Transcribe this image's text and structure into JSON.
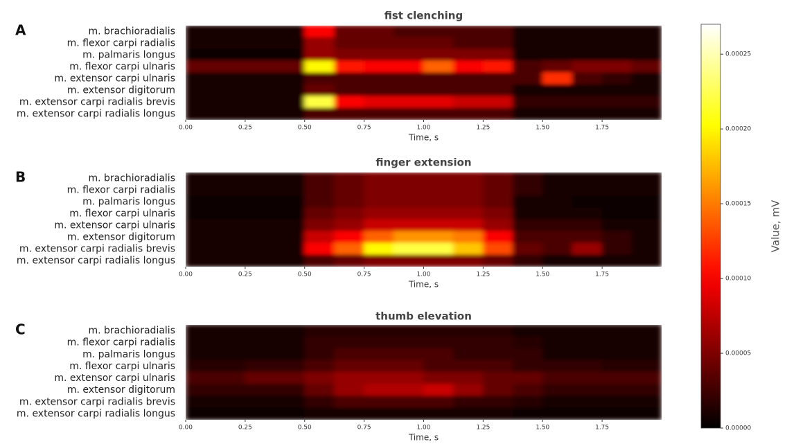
{
  "chart_data": [
    {
      "type": "heatmap",
      "panel_label": "A",
      "title": "fist clenching",
      "xlabel": "Time, s",
      "categories": [
        "m. brachioradialis",
        "m. flexor carpi radialis",
        "m. palmaris longus",
        "m. flexor carpi ulnaris",
        "m. extensor carpi ulnaris",
        "m. extensor digitorum",
        "m. extensor carpi radialis brevis",
        "m. extensor carpi radialis longus"
      ],
      "x_bins": [
        0,
        0.125,
        0.25,
        0.375,
        0.5,
        0.625,
        0.75,
        0.875,
        1,
        1.125,
        1.25,
        1.375,
        1.5,
        1.625,
        1.75,
        1.875,
        2
      ],
      "xlim": [
        0,
        2
      ],
      "xticks": [
        {
          "value": 0,
          "label": "0.00"
        },
        0.25,
        {
          "value": 0.5,
          "label": "0.50"
        },
        0.75,
        {
          "value": 1,
          "label": "1.00"
        },
        1.25,
        {
          "value": 1.5,
          "label": "1.50"
        },
        1.75
      ],
      "values": [
        [
          1e-05,
          1e-05,
          1e-05,
          1e-05,
          0.0001,
          4e-05,
          4e-05,
          3e-05,
          3e-05,
          3e-05,
          3e-05,
          1e-05,
          1e-05,
          1e-05,
          1e-05,
          1e-05
        ],
        [
          1e-05,
          1e-05,
          1e-05,
          1e-05,
          6e-05,
          4e-05,
          4e-05,
          4e-05,
          4e-05,
          3e-05,
          3e-05,
          1e-05,
          1e-05,
          1e-05,
          1e-05,
          1e-05
        ],
        [
          5e-06,
          5e-06,
          5e-06,
          5e-06,
          6e-05,
          5e-05,
          5e-05,
          5e-05,
          5e-05,
          5e-05,
          5e-05,
          1e-05,
          1e-05,
          1e-05,
          1e-05,
          1e-05
        ],
        [
          4e-05,
          4e-05,
          4e-05,
          4e-05,
          0.0002,
          0.00011,
          0.0001,
          0.0001,
          0.00014,
          0.0001,
          0.00011,
          3e-05,
          4e-05,
          5e-05,
          5e-05,
          4e-05
        ],
        [
          1e-05,
          1e-05,
          1e-05,
          1e-05,
          3e-05,
          3e-05,
          3e-05,
          3e-05,
          3e-05,
          3e-05,
          3e-05,
          3e-05,
          0.00012,
          3e-05,
          2e-05,
          1e-05
        ],
        [
          1e-05,
          1e-05,
          1e-05,
          1e-05,
          4e-05,
          3e-05,
          3e-05,
          3e-05,
          3e-05,
          3e-05,
          3e-05,
          1e-05,
          1e-05,
          1e-05,
          1e-05,
          1e-05
        ],
        [
          1e-05,
          1e-05,
          1e-05,
          1e-05,
          0.00022,
          0.0001,
          9e-05,
          9e-05,
          9e-05,
          8e-05,
          8e-05,
          2e-05,
          2e-05,
          2e-05,
          2e-05,
          2e-05
        ],
        [
          1e-05,
          1e-05,
          1e-05,
          1e-05,
          3e-05,
          3e-05,
          3e-05,
          3e-05,
          3e-05,
          3e-05,
          3e-05,
          1e-05,
          1e-05,
          1e-05,
          1e-05,
          1e-05
        ]
      ]
    },
    {
      "type": "heatmap",
      "panel_label": "B",
      "title": "finger extension",
      "xlabel": "Time, s",
      "categories": [
        "m. brachioradialis",
        "m. flexor carpi radialis",
        "m. palmaris longus",
        "m. flexor carpi ulnaris",
        "m. extensor carpi ulnaris",
        "m. extensor digitorum",
        "m. extensor carpi radialis brevis",
        "m. extensor carpi radialis longus"
      ],
      "x_bins": [
        0,
        0.125,
        0.25,
        0.375,
        0.5,
        0.625,
        0.75,
        0.875,
        1,
        1.125,
        1.25,
        1.375,
        1.5,
        1.625,
        1.75,
        1.875,
        2
      ],
      "xlim": [
        0,
        2
      ],
      "xticks": [
        {
          "value": 0,
          "label": "0.00"
        },
        0.25,
        {
          "value": 0.5,
          "label": "0.50"
        },
        0.75,
        {
          "value": 1,
          "label": "1.00"
        },
        1.25,
        {
          "value": 1.5,
          "label": "1.50"
        },
        1.75
      ],
      "values": [
        [
          1e-05,
          1e-05,
          1e-05,
          1e-05,
          3e-05,
          4e-05,
          5e-05,
          5e-05,
          5e-05,
          5e-05,
          4e-05,
          2e-05,
          1e-05,
          1e-05,
          1e-05,
          1e-05
        ],
        [
          1e-05,
          1e-05,
          1e-05,
          1e-05,
          3e-05,
          4e-05,
          5e-05,
          5e-05,
          5e-05,
          5e-05,
          4e-05,
          2e-05,
          1e-05,
          1e-05,
          1e-05,
          1e-05
        ],
        [
          3e-06,
          3e-06,
          3e-06,
          5e-06,
          3e-05,
          4e-05,
          5e-05,
          5e-05,
          5e-05,
          5e-05,
          4e-05,
          1e-05,
          1e-05,
          5e-06,
          3e-06,
          3e-06
        ],
        [
          5e-06,
          5e-06,
          5e-06,
          5e-06,
          4e-05,
          5e-05,
          6e-05,
          6e-05,
          6e-05,
          6e-05,
          5e-05,
          1e-05,
          1e-05,
          1e-05,
          5e-06,
          5e-06
        ],
        [
          1e-05,
          1e-05,
          1e-05,
          1e-05,
          5e-05,
          6e-05,
          8e-05,
          8e-05,
          8e-05,
          8e-05,
          6e-05,
          2e-05,
          2e-05,
          2e-05,
          1e-05,
          1e-05
        ],
        [
          1e-05,
          1e-05,
          1e-05,
          1e-05,
          8e-05,
          0.0001,
          0.00014,
          0.00016,
          0.00016,
          0.00015,
          0.0001,
          3e-05,
          3e-05,
          3e-05,
          2e-05,
          1e-05
        ],
        [
          1e-05,
          1e-05,
          1e-05,
          1e-05,
          0.0001,
          0.00014,
          0.0002,
          0.00022,
          0.00022,
          0.00018,
          0.00013,
          4e-05,
          3e-05,
          6e-05,
          2e-05,
          1e-05
        ],
        [
          1e-05,
          1e-05,
          1e-05,
          1e-05,
          3e-05,
          4e-05,
          5e-05,
          5e-05,
          5e-05,
          5e-05,
          4e-05,
          2e-05,
          1e-05,
          1e-05,
          1e-05,
          1e-05
        ]
      ]
    },
    {
      "type": "heatmap",
      "panel_label": "C",
      "title": "thumb elevation",
      "xlabel": "Time, s",
      "categories": [
        "m. brachioradialis",
        "m. flexor carpi radialis",
        "m. palmaris longus",
        "m. flexor carpi ulnaris",
        "m. extensor carpi ulnaris",
        "m. extensor digitorum",
        "m. extensor carpi radialis brevis",
        "m. extensor carpi radialis longus"
      ],
      "x_bins": [
        0,
        0.125,
        0.25,
        0.375,
        0.5,
        0.625,
        0.75,
        0.875,
        1,
        1.125,
        1.25,
        1.375,
        1.5,
        1.625,
        1.75,
        1.875,
        2
      ],
      "xlim": [
        0,
        2
      ],
      "xticks": [
        {
          "value": 0,
          "label": "0.00"
        },
        0.25,
        {
          "value": 0.5,
          "label": "0.50"
        },
        0.75,
        {
          "value": 1,
          "label": "1.00"
        },
        1.25,
        {
          "value": 1.5,
          "label": "1.50"
        },
        1.75
      ],
      "values": [
        [
          1e-05,
          1e-05,
          1e-05,
          1e-05,
          1.5e-05,
          1.5e-05,
          1.5e-05,
          1.5e-05,
          1.5e-05,
          1.5e-05,
          1.5e-05,
          1e-05,
          1e-05,
          1e-05,
          1e-05,
          1e-05
        ],
        [
          1e-05,
          1e-05,
          1e-05,
          1e-05,
          2e-05,
          2e-05,
          2e-05,
          2e-05,
          2e-05,
          2e-05,
          2e-05,
          1.5e-05,
          1e-05,
          1e-05,
          1e-05,
          1e-05
        ],
        [
          1e-05,
          1e-05,
          1e-05,
          1e-05,
          2e-05,
          3e-05,
          3e-05,
          3e-05,
          3e-05,
          2e-05,
          2e-05,
          2e-05,
          1e-05,
          1e-05,
          1e-05,
          1e-05
        ],
        [
          1.5e-05,
          1.5e-05,
          2e-05,
          2e-05,
          3e-05,
          4e-05,
          4e-05,
          4e-05,
          3e-05,
          3e-05,
          3e-05,
          2e-05,
          2e-05,
          2e-05,
          1.5e-05,
          1.5e-05
        ],
        [
          3e-05,
          3e-05,
          4e-05,
          4e-05,
          5e-05,
          6e-05,
          6e-05,
          6e-05,
          5e-05,
          5e-05,
          4e-05,
          4e-05,
          3e-05,
          3e-05,
          3e-05,
          3e-05
        ],
        [
          2e-05,
          2e-05,
          2e-05,
          2e-05,
          4e-05,
          6e-05,
          7e-05,
          7e-05,
          8e-05,
          6e-05,
          4e-05,
          3e-05,
          2e-05,
          2e-05,
          2e-05,
          2e-05
        ],
        [
          1e-05,
          1e-05,
          1e-05,
          1e-05,
          2e-05,
          3e-05,
          3e-05,
          3e-05,
          3e-05,
          2e-05,
          2e-05,
          1.5e-05,
          1e-05,
          1e-05,
          1e-05,
          1e-05
        ],
        [
          5e-06,
          5e-06,
          5e-06,
          5e-06,
          1e-05,
          1e-05,
          1e-05,
          1e-05,
          1e-05,
          1e-05,
          1e-05,
          5e-06,
          5e-06,
          5e-06,
          5e-06,
          5e-06
        ]
      ]
    }
  ],
  "colorbar": {
    "label": "Value, mV",
    "colormap": "hot",
    "lim": [
      0,
      0.00027
    ],
    "ticks": [
      {
        "value": 0,
        "label": "0.00000"
      },
      {
        "value": 5e-05,
        "label": "0.00005"
      },
      {
        "value": 0.0001,
        "label": "0.00010"
      },
      {
        "value": 0.00015,
        "label": "0.00015"
      },
      {
        "value": 0.0002,
        "label": "0.00020"
      },
      {
        "value": 0.00025,
        "label": "0.00025"
      }
    ]
  }
}
